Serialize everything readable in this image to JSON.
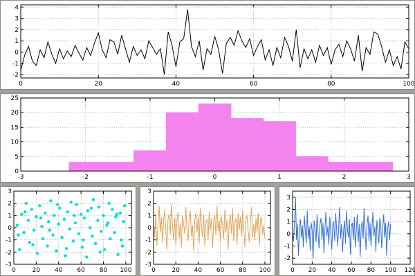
{
  "window": {
    "description": "tiled gnuplot-style multiplot with five panels"
  },
  "colors": {
    "axis": "#000000",
    "grid": "#b8b8b8",
    "panel_bg": "#ffffff",
    "splitter": "#a3a09b",
    "top_line": "#000000",
    "hist_fill": "#f583ef",
    "scatter": "#00dede",
    "orange_line": "#e2a356",
    "blue_line": "#2f6fe0"
  },
  "chart_data": [
    {
      "id": "top-noise-line",
      "type": "line",
      "title": "",
      "xlabel": "",
      "ylabel": "",
      "color_key": "top_line",
      "x_range": [
        0,
        100
      ],
      "y_range": [
        -2.3,
        4.2
      ],
      "x_ticks": [
        0,
        20,
        40,
        60,
        80,
        100
      ],
      "y_ticks": [
        -2,
        -1,
        0,
        1,
        2,
        3,
        4
      ],
      "grid": true,
      "legend": "none",
      "x_start": 0,
      "x_step": 1,
      "values": [
        -1.6,
        -0.3,
        0.5,
        -0.8,
        -1.2,
        0.2,
        -0.5,
        0.9,
        -0.2,
        -1.0,
        0.3,
        -0.6,
        0.1,
        -0.4,
        0.6,
        -0.1,
        -0.7,
        0.4,
        -0.3,
        0.8,
        1.7,
        0.2,
        -0.5,
        1.1,
        0.9,
        -0.2,
        1.5,
        0.3,
        -0.9,
        0.5,
        -0.3,
        0.2,
        -0.6,
        1.0,
        0.4,
        -0.2,
        0.3,
        -2.0,
        1.8,
        0.6,
        -1.3,
        0.9,
        1.2,
        3.8,
        0.5,
        -0.4,
        1.0,
        -1.6,
        0.3,
        -0.2,
        1.4,
        0.2,
        -1.9,
        0.8,
        1.3,
        0.6,
        1.9,
        1.0,
        0.4,
        1.2,
        -0.3,
        0.5,
        1.1,
        -0.7,
        0.2,
        -1.2,
        0.4,
        -0.5,
        1.3,
        0.5,
        -0.8,
        2.0,
        -1.4,
        0.3,
        -0.6,
        0.2,
        -0.9,
        0.6,
        -0.3,
        0.4,
        -1.1,
        0.2,
        0.7,
        -0.4,
        1.0,
        0.3,
        -0.8,
        1.5,
        -1.7,
        0.4,
        -0.2,
        1.8,
        1.6,
        0.5,
        -0.9,
        0.2,
        -1.2,
        -0.4,
        -1.5,
        0.9,
        0.3
      ]
    },
    {
      "id": "pink-histogram",
      "type": "histogram",
      "title": "",
      "xlabel": "",
      "ylabel": "",
      "color_key": "hist_fill",
      "x_range": [
        -3,
        3
      ],
      "y_range": [
        0,
        25
      ],
      "x_ticks": [
        -3,
        -2,
        -1,
        0,
        1,
        2,
        3
      ],
      "y_ticks": [
        0,
        5,
        10,
        15,
        20,
        25
      ],
      "grid": true,
      "legend": "none",
      "bin_edges": [
        -2.25,
        -1.75,
        -1.25,
        -0.75,
        -0.25,
        0.25,
        0.75,
        1.25,
        1.75,
        2.25,
        2.75
      ],
      "values": [
        3,
        3,
        7,
        20,
        23,
        18,
        17,
        5,
        3,
        3
      ]
    },
    {
      "id": "cyan-scatter",
      "type": "scatter",
      "title": "",
      "xlabel": "",
      "ylabel": "",
      "color_key": "scatter",
      "x_range": [
        0,
        105
      ],
      "y_range": [
        -3,
        3
      ],
      "x_ticks": [
        0,
        20,
        40,
        60,
        80,
        100
      ],
      "y_ticks": [
        -3,
        -2,
        -1,
        0,
        1,
        2,
        3
      ],
      "grid": true,
      "legend": "none",
      "points": [
        [
          3,
          0.2
        ],
        [
          5,
          -1.8
        ],
        [
          7,
          1.1
        ],
        [
          9,
          -0.4
        ],
        [
          11,
          2.0
        ],
        [
          13,
          0.6
        ],
        [
          14,
          -1.2
        ],
        [
          16,
          1.5
        ],
        [
          18,
          -0.2
        ],
        [
          20,
          0.9
        ],
        [
          21,
          -2.1
        ],
        [
          23,
          1.8
        ],
        [
          25,
          0.1
        ],
        [
          26,
          -0.9
        ],
        [
          28,
          1.2
        ],
        [
          30,
          -1.5
        ],
        [
          31,
          0.5
        ],
        [
          33,
          2.2
        ],
        [
          35,
          -0.6
        ],
        [
          36,
          1.0
        ],
        [
          38,
          -1.9
        ],
        [
          40,
          0.3
        ],
        [
          41,
          1.6
        ],
        [
          43,
          -0.8
        ],
        [
          45,
          0.7
        ],
        [
          46,
          -2.3
        ],
        [
          48,
          1.3
        ],
        [
          50,
          -0.1
        ],
        [
          51,
          2.1
        ],
        [
          53,
          -1.1
        ],
        [
          55,
          0.4
        ],
        [
          56,
          1.9
        ],
        [
          58,
          -0.5
        ],
        [
          60,
          1.1
        ],
        [
          61,
          -1.6
        ],
        [
          63,
          0.8
        ],
        [
          65,
          -2.4
        ],
        [
          66,
          1.4
        ],
        [
          68,
          0.0
        ],
        [
          70,
          -0.7
        ],
        [
          71,
          2.3
        ],
        [
          73,
          -1.3
        ],
        [
          75,
          0.6
        ],
        [
          76,
          1.7
        ],
        [
          78,
          -0.3
        ],
        [
          80,
          1.0
        ],
        [
          81,
          -1.8
        ],
        [
          83,
          0.2
        ],
        [
          85,
          2.0
        ],
        [
          86,
          -0.9
        ],
        [
          88,
          1.5
        ],
        [
          90,
          -0.4
        ],
        [
          91,
          0.9
        ],
        [
          93,
          -2.2
        ],
        [
          95,
          1.2
        ],
        [
          96,
          -1.0
        ],
        [
          98,
          0.5
        ],
        [
          99,
          1.8
        ],
        [
          4,
          -0.6
        ],
        [
          10,
          1.3
        ],
        [
          17,
          -1.4
        ],
        [
          24,
          0.8
        ],
        [
          32,
          -0.2
        ],
        [
          39,
          1.9
        ],
        [
          47,
          -1.7
        ],
        [
          54,
          1.0
        ],
        [
          62,
          -1.0
        ],
        [
          69,
          1.6
        ],
        [
          77,
          -2.0
        ],
        [
          84,
          0.4
        ],
        [
          92,
          1.1
        ],
        [
          97,
          -1.5
        ]
      ]
    },
    {
      "id": "orange-noise-line",
      "type": "line",
      "title": "",
      "xlabel": "",
      "ylabel": "",
      "color_key": "orange_line",
      "x_range": [
        0,
        105
      ],
      "y_range": [
        -3,
        3
      ],
      "x_ticks": [
        0,
        20,
        40,
        60,
        80,
        100
      ],
      "y_ticks": [
        -3,
        -2,
        -1,
        0,
        1,
        2,
        3
      ],
      "grid": true,
      "legend": "none",
      "x_start": 0,
      "x_step": 1,
      "values": [
        0.4,
        -0.8,
        1.2,
        -1.5,
        0.3,
        1.8,
        -0.4,
        0.9,
        -1.2,
        0.5,
        1.5,
        -0.3,
        -1.8,
        0.7,
        1.1,
        -0.6,
        1.9,
        0.2,
        -1.0,
        0.8,
        -1.4,
        0.6,
        1.3,
        -0.9,
        0.4,
        -1.6,
        1.0,
        0.3,
        -0.5,
        1.7,
        -0.2,
        -1.1,
        0.8,
        1.4,
        -0.7,
        0.2,
        -1.9,
        0.6,
        1.2,
        -0.4,
        0.9,
        -1.3,
        1.6,
        0.1,
        -0.8,
        1.1,
        -1.5,
        0.4,
        0.7,
        -1.0,
        1.3,
        -0.2,
        0.8,
        -1.7,
        0.5,
        1.0,
        -0.6,
        1.8,
        -0.3,
        0.6,
        -1.2,
        0.9,
        0.2,
        -0.9,
        1.5,
        -0.4,
        0.7,
        -1.8,
        0.3,
        1.1,
        -0.5,
        1.6,
        -1.1,
        0.4,
        0.8,
        -1.4,
        1.2,
        -0.2,
        0.9,
        -0.7,
        1.4,
        0.1,
        -1.6,
        0.7,
        1.0,
        -0.3,
        -1.2,
        0.5,
        1.7,
        -0.8,
        0.3,
        -1.0,
        0.8,
        -0.4,
        1.2,
        -1.5,
        0.6,
        0.9,
        -0.6,
        0.2,
        -0.9
      ]
    },
    {
      "id": "blue-noise-line",
      "type": "line",
      "title": "",
      "xlabel": "",
      "ylabel": "",
      "color_key": "blue_line",
      "x_range": [
        0,
        120
      ],
      "y_range": [
        -2.5,
        3.5
      ],
      "x_ticks": [
        0,
        20,
        40,
        60,
        80,
        100,
        120
      ],
      "y_ticks": [
        -2,
        -1,
        0,
        1,
        2,
        3
      ],
      "grid": true,
      "legend": "none",
      "x_start": 0,
      "x_step": 1,
      "values": [
        0.2,
        -0.6,
        1.0,
        3.0,
        -0.5,
        0.8,
        -1.8,
        0.4,
        1.2,
        -0.3,
        0.7,
        -1.1,
        1.5,
        0.2,
        -0.8,
        1.9,
        -0.4,
        0.6,
        -1.4,
        0.9,
        0.3,
        -2.0,
        1.1,
        0.5,
        -0.7,
        1.6,
        0.1,
        -1.2,
        0.8,
        1.3,
        -0.5,
        0.9,
        -1.6,
        0.4,
        1.8,
        -0.2,
        0.6,
        -0.9,
        1.4,
        0.2,
        -1.3,
        0.7,
        1.0,
        -0.6,
        1.7,
        0.3,
        -1.0,
        0.5,
        2.2,
        -0.4,
        0.8,
        -1.5,
        0.2,
        1.1,
        -0.8,
        1.9,
        0.4,
        -0.3,
        1.2,
        -1.7,
        0.6,
        0.9,
        -0.5,
        1.4,
        -1.1,
        0.3,
        1.6,
        -0.7,
        0.8,
        -1.9,
        0.5,
        1.0,
        -0.4,
        2.1,
        0.2,
        -1.3,
        0.7,
        1.5,
        -0.6,
        0.9,
        -1.0,
        0.4,
        1.8,
        -0.2,
        0.6,
        -1.5,
        1.1,
        0.3,
        -0.8,
        1.3,
        0.7,
        -1.2,
        0.5,
        1.6,
        -0.3,
        0.9,
        -1.8,
        0.4,
        1.0,
        -0.5,
        0.8
      ]
    }
  ]
}
